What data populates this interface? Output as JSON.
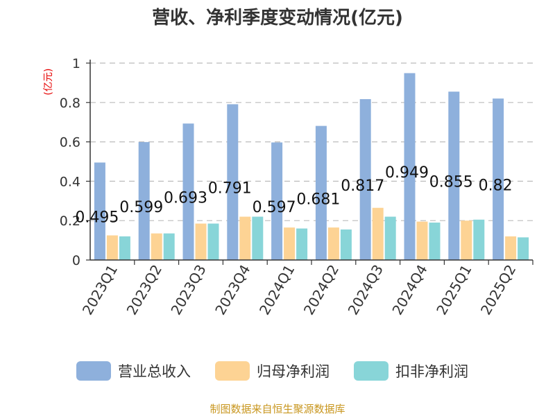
{
  "chart_data": {
    "type": "bar",
    "title": "营收、净利季度变动情况(亿元)",
    "ylabel": "(亿元)",
    "xlabel": "",
    "ylim": [
      0,
      1
    ],
    "yticks": [
      "0",
      "0.2",
      "0.4",
      "0.6",
      "0.8",
      "1"
    ],
    "grid": true,
    "legend_position": "bottom",
    "categories": [
      "2023Q1",
      "2023Q2",
      "2023Q3",
      "2023Q4",
      "2024Q1",
      "2024Q2",
      "2024Q3",
      "2024Q4",
      "2025Q1",
      "2025Q2"
    ],
    "series": [
      {
        "name": "营业总收入",
        "color": "#8eb0dc",
        "values": [
          0.495,
          0.599,
          0.693,
          0.791,
          0.597,
          0.681,
          0.817,
          0.949,
          0.855,
          0.82
        ],
        "labels": [
          "0.495",
          "0.599",
          "0.693",
          "0.791",
          "0.597",
          "0.681",
          "0.817",
          "0.949",
          "0.855",
          "0.82"
        ]
      },
      {
        "name": "归母净利润",
        "color": "#fdd394",
        "values": [
          0.125,
          0.135,
          0.185,
          0.22,
          0.165,
          0.165,
          0.265,
          0.195,
          0.2,
          0.12
        ]
      },
      {
        "name": "扣非净利润",
        "color": "#88d5d8",
        "values": [
          0.12,
          0.135,
          0.185,
          0.22,
          0.16,
          0.155,
          0.22,
          0.19,
          0.205,
          0.115
        ]
      }
    ]
  },
  "source": "制图数据来自恒生聚源数据库"
}
